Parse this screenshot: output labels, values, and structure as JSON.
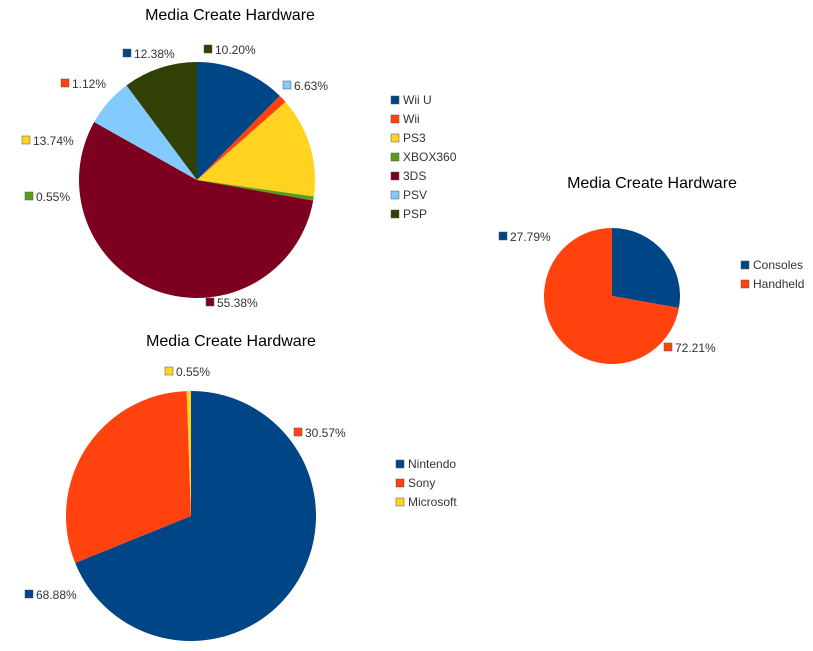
{
  "chart_data": [
    {
      "type": "pie",
      "title": "Media Create Hardware",
      "legend_position": "right",
      "slices": [
        {
          "name": "Wii U",
          "value": 12.38,
          "label": "12.38%",
          "color": "#004586"
        },
        {
          "name": "Wii",
          "value": 1.12,
          "label": "1.12%",
          "color": "#ff420e"
        },
        {
          "name": "PS3",
          "value": 13.74,
          "label": "13.74%",
          "color": "#ffd320"
        },
        {
          "name": "XBOX360",
          "value": 0.55,
          "label": "0.55%",
          "color": "#579d1c"
        },
        {
          "name": "3DS",
          "value": 55.38,
          "label": "55.38%",
          "color": "#7e0021"
        },
        {
          "name": "PSV",
          "value": 6.63,
          "label": "6.63%",
          "color": "#83caff"
        },
        {
          "name": "PSP",
          "value": 10.2,
          "label": "10.20%",
          "color": "#314004"
        }
      ]
    },
    {
      "type": "pie",
      "title": "Media Create Hardware",
      "legend_position": "right",
      "slices": [
        {
          "name": "Consoles",
          "value": 27.79,
          "label": "27.79%",
          "color": "#004586"
        },
        {
          "name": "Handheld",
          "value": 72.21,
          "label": "72.21%",
          "color": "#ff420e"
        }
      ]
    },
    {
      "type": "pie",
      "title": "Media Create Hardware",
      "legend_position": "right",
      "slices": [
        {
          "name": "Nintendo",
          "value": 68.88,
          "label": "68.88%",
          "color": "#004586"
        },
        {
          "name": "Sony",
          "value": 30.57,
          "label": "30.57%",
          "color": "#ff420e"
        },
        {
          "name": "Microsoft",
          "value": 0.55,
          "label": "0.55%",
          "color": "#ffd320"
        }
      ]
    }
  ]
}
